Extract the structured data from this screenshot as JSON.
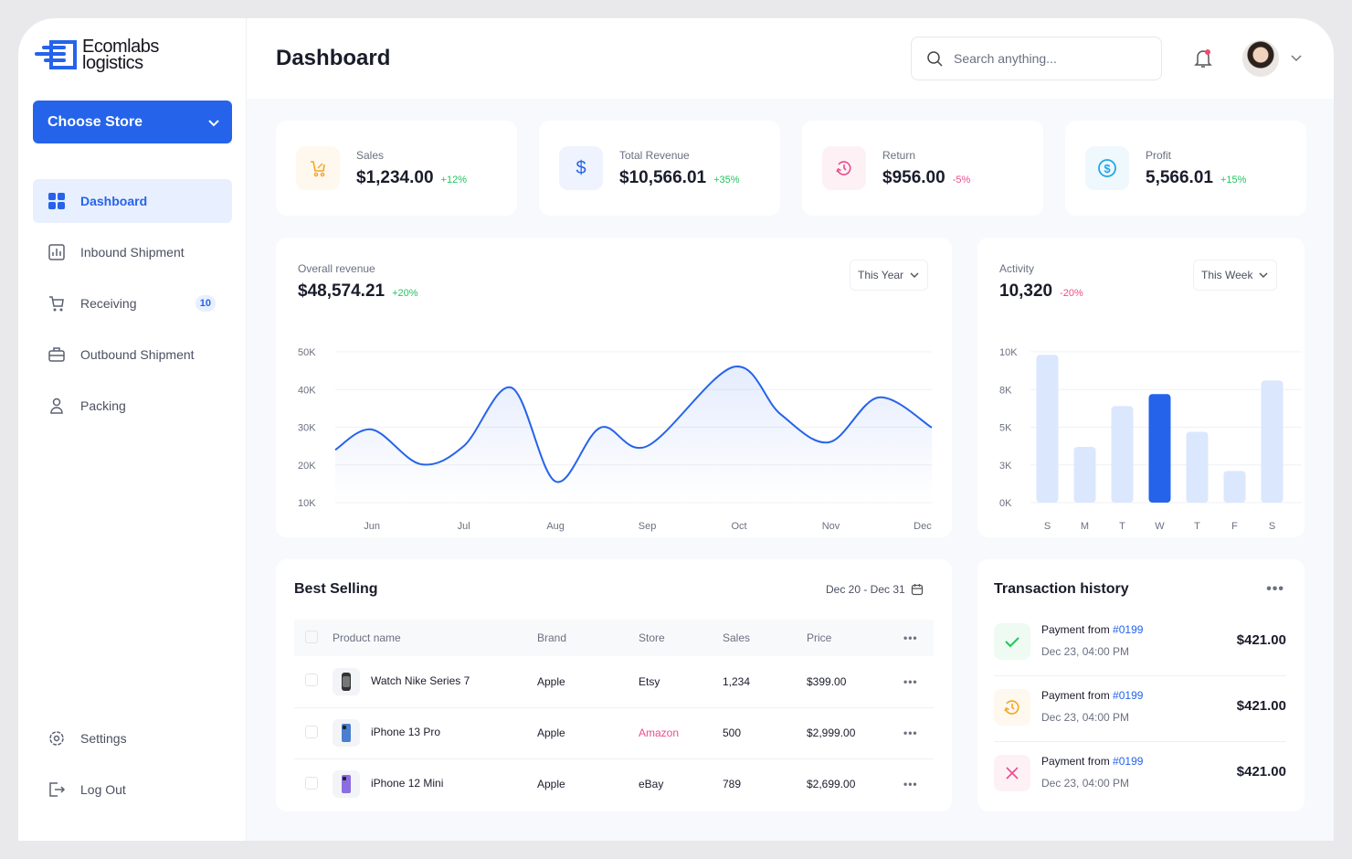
{
  "brand": {
    "line1": "Ecomlabs",
    "line2": "logistics",
    "color": "#2563eb"
  },
  "sidebar": {
    "store_button": "Choose Store",
    "items": [
      {
        "label": "Dashboard",
        "icon": "grid-icon",
        "active": true
      },
      {
        "label": "Inbound Shipment",
        "icon": "chart-icon"
      },
      {
        "label": "Receiving",
        "icon": "cart-icon",
        "badge": "10"
      },
      {
        "label": "Outbound Shipment",
        "icon": "briefcase-icon"
      },
      {
        "label": "Packing",
        "icon": "user-icon"
      }
    ],
    "bottom": [
      {
        "label": "Settings",
        "icon": "gear-icon"
      },
      {
        "label": "Log Out",
        "icon": "logout-icon"
      }
    ]
  },
  "header": {
    "title": "Dashboard",
    "search_placeholder": "Search anything..."
  },
  "stats": [
    {
      "label": "Sales",
      "value": "$1,234.00",
      "change": "+12%",
      "trend": "up",
      "icon": "cart-discount-icon",
      "color": "#f5a524"
    },
    {
      "label": "Total Revenue",
      "value": "$10,566.01",
      "change": "+35%",
      "trend": "up",
      "icon": "dollar-icon",
      "color": "#2563eb"
    },
    {
      "label": "Return",
      "value": "$956.00",
      "change": "-5%",
      "trend": "down",
      "icon": "history-icon",
      "color": "#ec4c8a"
    },
    {
      "label": "Profit",
      "value": "5,566.01",
      "change": "+15%",
      "trend": "up",
      "icon": "dollar-circle-icon",
      "color": "#22a7e8"
    }
  ],
  "revenue": {
    "label": "Overall revenue",
    "value": "$48,574.21",
    "change": "+20%",
    "period": "This Year"
  },
  "activity": {
    "label": "Activity",
    "value": "10,320",
    "change": "-20%",
    "period": "This Week"
  },
  "chart_data": [
    {
      "type": "area",
      "ylim": [
        10000,
        50000
      ],
      "yticks": [
        "50K",
        "40K",
        "30K",
        "20K",
        "10K"
      ],
      "ytick_values": [
        50000,
        40000,
        30000,
        20000,
        10000
      ],
      "categories": [
        "Jun",
        "Jul",
        "Aug",
        "Sep",
        "Oct",
        "Nov",
        "Dec"
      ],
      "xlim": [
        5.6,
        12.1
      ],
      "grid": true,
      "color": "#2563eb",
      "points": [
        [
          5.6,
          24000
        ],
        [
          6.0,
          29400
        ],
        [
          6.53,
          20200
        ],
        [
          7.0,
          25000
        ],
        [
          7.52,
          40500
        ],
        [
          8.0,
          15600
        ],
        [
          8.49,
          29900
        ],
        [
          9.0,
          25000
        ],
        [
          9.94,
          46000
        ],
        [
          10.45,
          33500
        ],
        [
          10.98,
          26000
        ],
        [
          11.52,
          37900
        ],
        [
          12.12,
          29900
        ]
      ]
    },
    {
      "type": "bar",
      "categories": [
        "S",
        "M",
        "T",
        "W",
        "T",
        "F",
        "S"
      ],
      "values": [
        9800,
        3700,
        6400,
        7200,
        4700,
        2100,
        8100
      ],
      "highlight_index": 3,
      "ylim": [
        0,
        10000
      ],
      "yticks": [
        "10K",
        "8K",
        "5K",
        "3K",
        "0K"
      ],
      "ytick_values": [
        10000,
        7500,
        5000,
        2500,
        0
      ],
      "grid": true,
      "color": "#2563eb",
      "muted_color": "#dbe7fd"
    }
  ],
  "best_selling": {
    "title": "Best Selling",
    "date_range": "Dec 20 - Dec 31",
    "columns": [
      "Product name",
      "Brand",
      "Store",
      "Sales",
      "Price"
    ],
    "rows": [
      {
        "name": "Watch Nike Series 7",
        "brand": "Apple",
        "store": "Etsy",
        "sales": "1,234",
        "price": "$399.00",
        "thumb": "watch-icon"
      },
      {
        "name": "iPhone 13 Pro",
        "brand": "Apple",
        "store": "Amazon",
        "sales": "500",
        "price": "$2,999.00",
        "thumb": "phone-icon",
        "store_color": "#ec4c8a"
      },
      {
        "name": "iPhone 12 Mini",
        "brand": "Apple",
        "store": "eBay",
        "sales": "789",
        "price": "$2,699.00",
        "thumb": "phone-icon"
      }
    ]
  },
  "transactions": {
    "title": "Transaction history",
    "items": [
      {
        "prefix": "Payment from",
        "ref": "#0199",
        "date": "Dec 23, 04:00 PM",
        "amount": "$421.00",
        "status": "success",
        "color": "#22c55e"
      },
      {
        "prefix": "Payment from",
        "ref": "#0199",
        "date": "Dec 23, 04:00 PM",
        "amount": "$421.00",
        "status": "pending",
        "color": "#f5a524"
      },
      {
        "prefix": "Payment from",
        "ref": "#0199",
        "date": "Dec 23, 04:00 PM",
        "amount": "$421.00",
        "status": "failed",
        "color": "#ec4c8a"
      }
    ]
  }
}
